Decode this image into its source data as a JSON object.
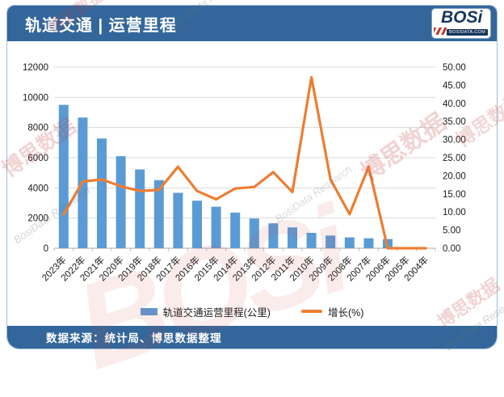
{
  "header": {
    "title": "轨道交通 | 运营里程",
    "logo": {
      "text": "BOSi",
      "subtext": "BOSIDATA.COM"
    }
  },
  "footer": {
    "source": "数据来源：统计局、博思数据整理"
  },
  "watermarks": {
    "cn": "博思数据",
    "en": "BosiData Research",
    "logo": "BOSi"
  },
  "colors": {
    "header_bg": "#33679b",
    "bar": "#5b9bd5",
    "line": "#ed7d31",
    "grid": "#d9d9d9",
    "zero_line": "#ababab",
    "axis_text": "#1a1a1a",
    "panel_border": "#9fbbd6",
    "logo_navy": "#16355c",
    "logo_red": "#c0392b"
  },
  "chart_data": {
    "type": "bar",
    "subtype": "bar+line dual-axis",
    "title": "轨道交通 | 运营里程",
    "categories": [
      "2023年",
      "2022年",
      "2021年",
      "2020年",
      "2019年",
      "2018年",
      "2017年",
      "2016年",
      "2015年",
      "2014年",
      "2013年",
      "2012年",
      "2011年",
      "2010年",
      "2009年",
      "2008年",
      "2007年",
      "2006年",
      "2005年",
      "2004年"
    ],
    "series": [
      {
        "name": "轨道交通运营里程(公里)",
        "type": "bar",
        "axis": "left",
        "color": "#5b9bd5",
        "values": [
          9500,
          8660,
          7270,
          6100,
          5220,
          4510,
          3670,
          3150,
          2750,
          2360,
          1970,
          1650,
          1380,
          1020,
          840,
          720,
          660,
          610,
          0,
          0
        ]
      },
      {
        "name": "增长(%)",
        "type": "line",
        "axis": "right",
        "color": "#ed7d31",
        "values": [
          9.3,
          18.4,
          19.0,
          17.1,
          15.8,
          16.1,
          22.5,
          15.8,
          13.5,
          16.5,
          16.9,
          21.0,
          15.5,
          47.2,
          19.0,
          9.4,
          22.5,
          0,
          0,
          0
        ]
      }
    ],
    "left_axis": {
      "min": 0,
      "max": 12000,
      "step": 2000,
      "ticks": [
        "0",
        "2000",
        "4000",
        "6000",
        "8000",
        "10000",
        "12000"
      ]
    },
    "right_axis": {
      "min": 0,
      "max": 50,
      "step": 5,
      "ticks": [
        "0.00",
        "5.00",
        "10.00",
        "15.00",
        "20.00",
        "25.00",
        "30.00",
        "35.00",
        "40.00",
        "45.00",
        "50.00"
      ]
    },
    "grid": true,
    "legend_position": "bottom"
  }
}
